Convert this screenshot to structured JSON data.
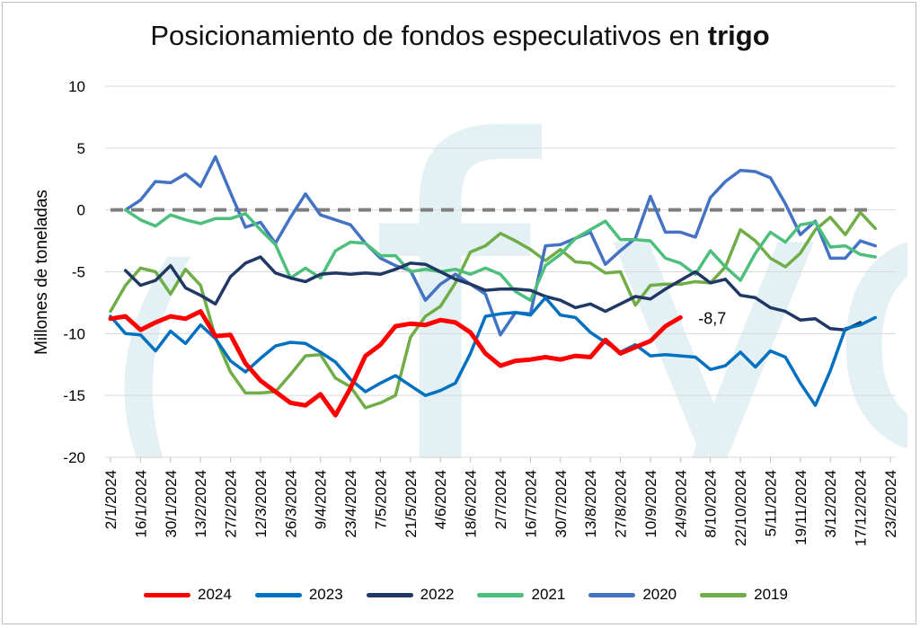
{
  "title": {
    "prefix": "Posicionamiento de fondos especulativos en ",
    "bold": "trigo"
  },
  "chart_data": {
    "type": "line",
    "title": "Posicionamiento de fondos especulativos en trigo",
    "ylabel": "Millones de toneladas",
    "xlabel": "",
    "ylim": [
      -20,
      10
    ],
    "yticks": [
      10,
      5,
      0,
      -5,
      -10,
      -15,
      -20
    ],
    "reference_line": 0,
    "grid": true,
    "legend_position": "bottom",
    "n_weeks": 61,
    "x_tick_labels": [
      "2/1/2024",
      "16/1/2024",
      "30/1/2024",
      "13/2/2024",
      "27/2/2024",
      "12/3/2024",
      "26/3/2024",
      "9/4/2024",
      "23/4/2024",
      "7/5/2024",
      "21/5/2024",
      "4/6/2024",
      "18/6/2024",
      "2/7/2024",
      "16/7/2024",
      "30/7/2024",
      "13/8/2024",
      "27/8/2024",
      "10/9/2024",
      "24/9/2024",
      "8/10/2024",
      "22/10/2024",
      "5/11/2024",
      "19/11/2024",
      "3/12/2024",
      "17/12/2024",
      "23/2/2024"
    ],
    "annotation": {
      "text": "-8,7",
      "series": "2024"
    },
    "series": [
      {
        "name": "2024",
        "color": "#ff0000",
        "width": 5,
        "start": 0,
        "values": [
          -8.8,
          -8.6,
          -9.7,
          -9.1,
          -8.6,
          -8.8,
          -8.2,
          -10.2,
          -10.1,
          -12.4,
          -13.8,
          -14.7,
          -15.6,
          -15.8,
          -14.9,
          -16.6,
          -14.4,
          -11.8,
          -10.9,
          -9.4,
          -9.2,
          -9.3,
          -8.9,
          -9.1,
          -9.9,
          -11.6,
          -12.6,
          -12.2,
          -12.1,
          -11.9,
          -12.1,
          -11.8,
          -11.9,
          -10.5,
          -11.6,
          -11.1,
          -10.6,
          -9.4,
          -8.7
        ]
      },
      {
        "name": "2023",
        "color": "#0070c0",
        "width": 3.5,
        "start": 0,
        "values": [
          -8.6,
          -10,
          -10.1,
          -11.4,
          -9.8,
          -10.8,
          -9.3,
          -10.4,
          -12.2,
          -13.1,
          -12,
          -11,
          -10.7,
          -10.8,
          -11.5,
          -12.3,
          -13.7,
          -14.7,
          -14,
          -13.4,
          -14.2,
          -15,
          -14.6,
          -14,
          -11.6,
          -8.6,
          -8.4,
          -8.3,
          -8.5,
          -7.1,
          -8.5,
          -8.7,
          -9.9,
          -10.7,
          -11.5,
          -10.9,
          -11.8,
          -11.7,
          -11.8,
          -11.9,
          -12.9,
          -12.6,
          -11.5,
          -12.7,
          -11.4,
          -11.9,
          -14,
          -15.8,
          -13,
          -9.6,
          -9.3,
          -8.7
        ]
      },
      {
        "name": "2022",
        "color": "#1f3864",
        "width": 3.5,
        "start": 1,
        "values": [
          -4.9,
          -6.1,
          -5.7,
          -4.5,
          -6.3,
          -6.9,
          -7.6,
          -5.4,
          -4.3,
          -3.8,
          -5.1,
          -5.5,
          -5.8,
          -5.2,
          -5.1,
          -5.2,
          -5.1,
          -5.2,
          -4.8,
          -4.3,
          -4.4,
          -5,
          -5.6,
          -6,
          -6.5,
          -6.4,
          -6.4,
          -6.5,
          -7,
          -7.3,
          -7.9,
          -7.6,
          -8.2,
          -7.6,
          -7,
          -7.2,
          -6.4,
          -5.7,
          -5,
          -5.9,
          -5.6,
          -6.9,
          -7.1,
          -7.9,
          -8.2,
          -8.9,
          -8.8,
          -9.6,
          -9.7,
          -9.1
        ]
      },
      {
        "name": "2021",
        "color": "#4dbf7d",
        "width": 3.5,
        "start": 1,
        "values": [
          0,
          -0.8,
          -1.3,
          -0.4,
          -0.8,
          -1.1,
          -0.7,
          -0.7,
          -0.3,
          -1.6,
          -2.8,
          -5.5,
          -4.7,
          -5.5,
          -3.3,
          -2.6,
          -2.7,
          -3.7,
          -3.7,
          -5,
          -4.8,
          -5,
          -4.8,
          -5.2,
          -4.7,
          -5.2,
          -6.6,
          -7.3,
          -4.5,
          -3.6,
          -2.3,
          -1.6,
          -0.9,
          -2.4,
          -2.4,
          -2.5,
          -3.9,
          -4.3,
          -5.2,
          -3.3,
          -4.6,
          -5.7,
          -3.5,
          -1.8,
          -2.6,
          -1.2,
          -1,
          -3,
          -2.9,
          -3.6,
          -3.8
        ]
      },
      {
        "name": "2020",
        "color": "#4472c4",
        "width": 3.5,
        "start": 1,
        "values": [
          0,
          0.8,
          2.3,
          2.2,
          2.9,
          1.9,
          4.3,
          1.4,
          -1.4,
          -1,
          -2.7,
          -0.6,
          1.3,
          -0.4,
          -0.8,
          -1.2,
          -2.7,
          -3.9,
          -4.5,
          -4.9,
          -7.3,
          -6,
          -5.2,
          -6,
          -6.8,
          -10.1,
          -8.3,
          -8.4,
          -2.9,
          -2.8,
          -2.3,
          -1.8,
          -4.4,
          -3.3,
          -2.3,
          1.1,
          -1.8,
          -1.8,
          -2.2,
          1,
          2.3,
          3.2,
          3.1,
          2.6,
          0.5,
          -2,
          -0.9,
          -3.9,
          -3.9,
          -2.5,
          -2.9
        ]
      },
      {
        "name": "2019",
        "color": "#70ad47",
        "width": 3.5,
        "start": 0,
        "values": [
          -8.2,
          -6.1,
          -4.7,
          -5,
          -6.8,
          -4.8,
          -6.1,
          -10.3,
          -13.1,
          -14.8,
          -14.8,
          -14.7,
          -13.3,
          -11.8,
          -11.7,
          -13.6,
          -14.3,
          -16,
          -15.6,
          -15,
          -10.3,
          -8.6,
          -7.8,
          -5.9,
          -3.4,
          -2.9,
          -1.9,
          -2.5,
          -3.2,
          -4.1,
          -3.2,
          -4.2,
          -4.3,
          -5.1,
          -5,
          -7.7,
          -6.1,
          -6,
          -6,
          -5.8,
          -5.9,
          -4.6,
          -1.6,
          -2.5,
          -3.9,
          -4.6,
          -3.5,
          -1.6,
          -0.6,
          -2,
          -0.2,
          -1.5
        ]
      }
    ]
  }
}
